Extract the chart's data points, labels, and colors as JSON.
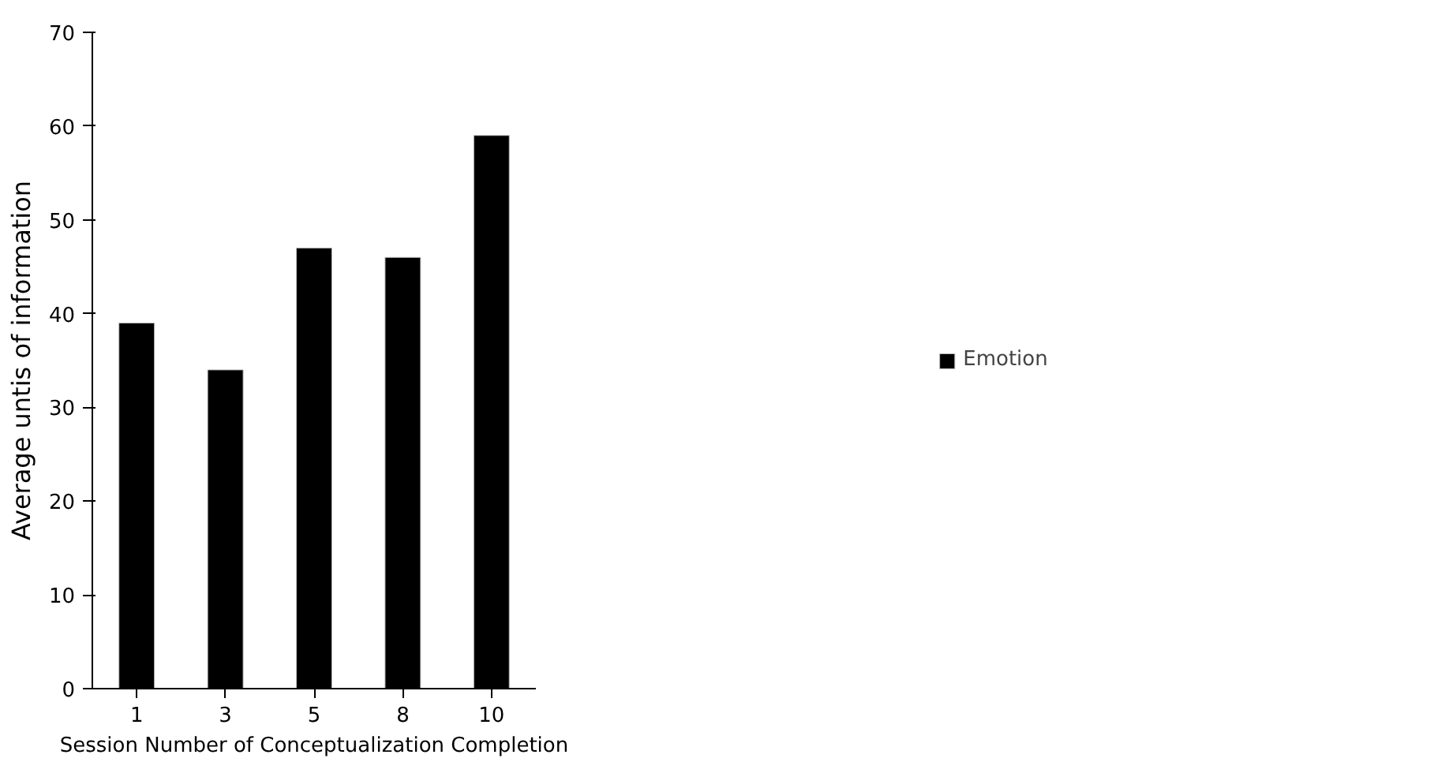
{
  "chart_data": {
    "type": "bar",
    "xlabel": "Session Number of Conceptualization Completion",
    "ylabel": "Average untis of information",
    "categories": [
      "1",
      "3",
      "5",
      "8",
      "10"
    ],
    "series": [
      {
        "name": "Emotion",
        "color": "#000000",
        "values": [
          39,
          34,
          47,
          46,
          59
        ]
      }
    ],
    "ylim": [
      0,
      70
    ],
    "yticks": [
      0,
      10,
      20,
      30,
      40,
      50,
      60,
      70
    ],
    "grid": false,
    "legend": "right"
  }
}
